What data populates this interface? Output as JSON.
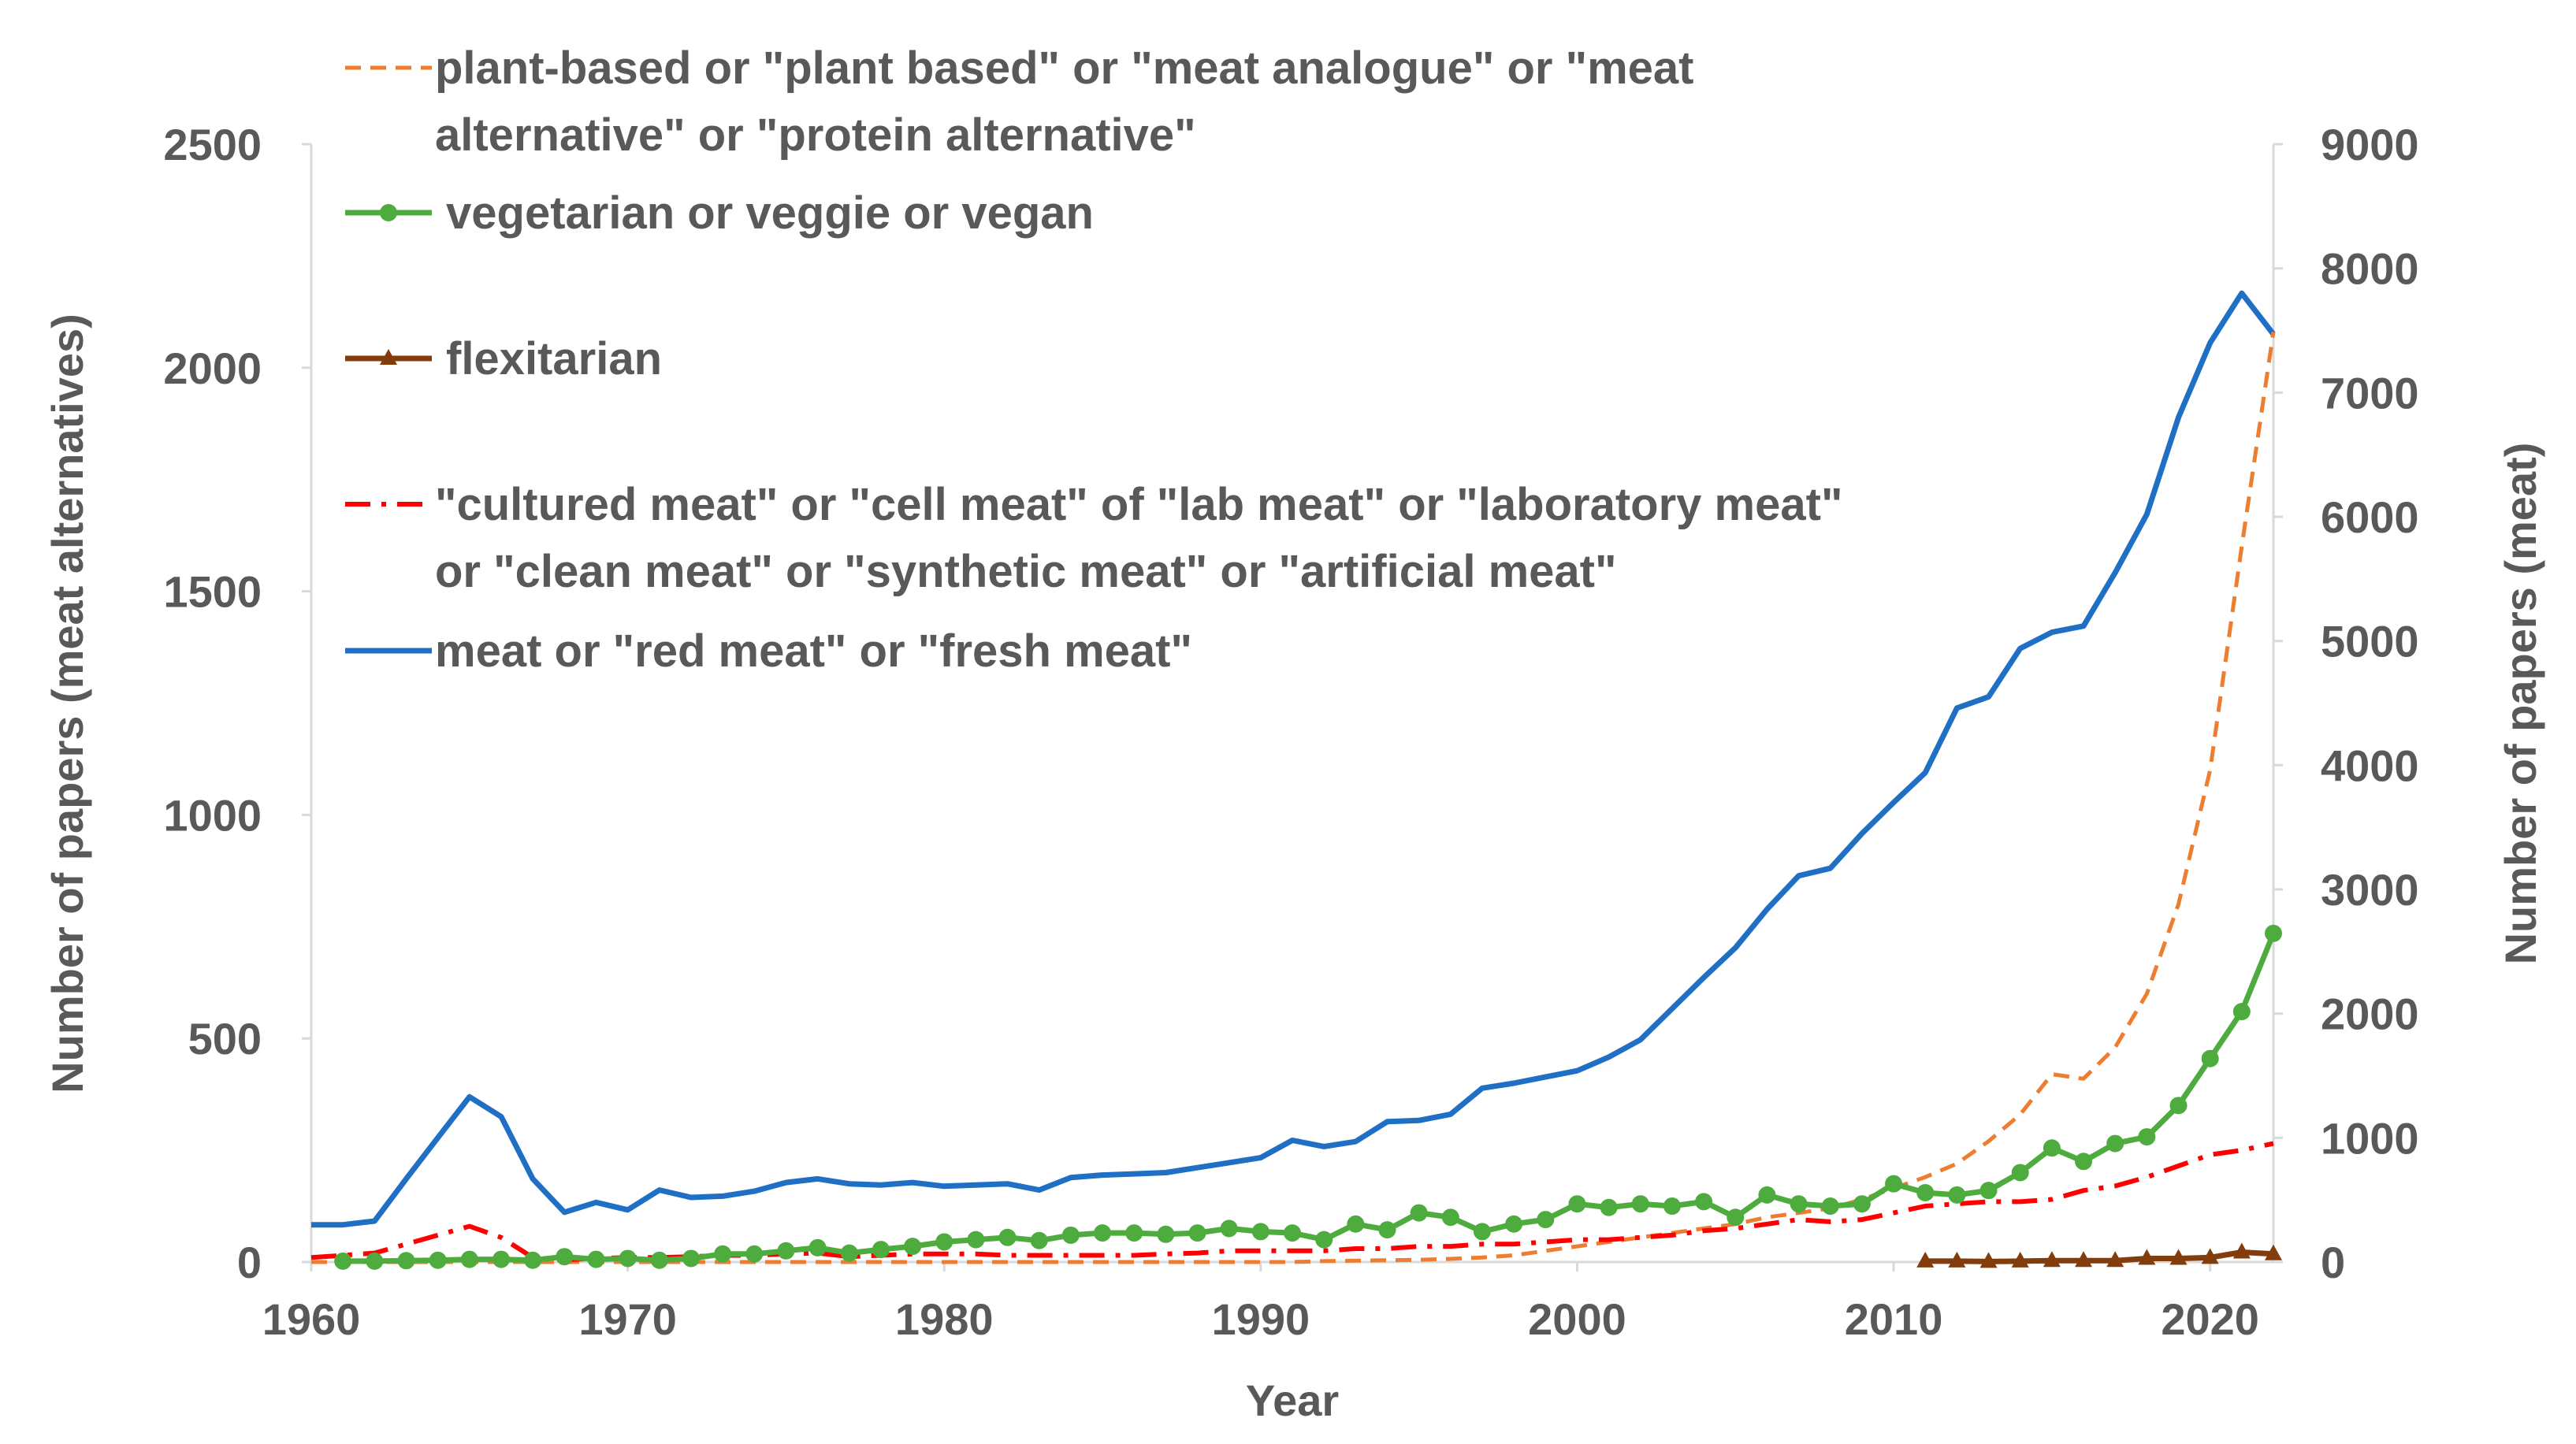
{
  "chart_data": {
    "type": "line",
    "title": "",
    "xlabel": "Year",
    "ylabel_left": "Number of papers (meat alternatives)",
    "ylabel_right": "Number of papers (meat)",
    "xlim": [
      1960,
      2022
    ],
    "ylim_left": [
      0,
      2500
    ],
    "ylim_right": [
      0,
      9000
    ],
    "x_ticks": [
      "1960",
      "1970",
      "1980",
      "1990",
      "2000",
      "2010",
      "2020"
    ],
    "y_ticks_left": [
      "0",
      "500",
      "1000",
      "1500",
      "2000",
      "2500"
    ],
    "y_ticks_right": [
      "0",
      "1000",
      "2000",
      "3000",
      "4000",
      "5000",
      "6000",
      "7000",
      "8000",
      "9000"
    ],
    "legend_position": "top-left",
    "series": [
      {
        "name": "plant-based or \"plant based\" or \"meat analogue\" or \"meat alternative\" or \"protein alternative\"",
        "legend_lines": [
          "plant-based or \"plant based\" or \"meat analogue\" or \"meat",
          "alternative\" or \"protein alternative\""
        ],
        "axis": "left",
        "color": "#ED7D31",
        "style": "dashed",
        "marker": "none",
        "x": [
          1960,
          1961,
          1962,
          1963,
          1964,
          1965,
          1966,
          1967,
          1968,
          1969,
          1970,
          1971,
          1972,
          1973,
          1974,
          1975,
          1976,
          1977,
          1978,
          1979,
          1980,
          1981,
          1982,
          1983,
          1984,
          1985,
          1986,
          1987,
          1988,
          1989,
          1990,
          1991,
          1992,
          1993,
          1994,
          1995,
          1996,
          1997,
          1998,
          1999,
          2000,
          2001,
          2002,
          2003,
          2004,
          2005,
          2006,
          2007,
          2008,
          2009,
          2010,
          2011,
          2012,
          2013,
          2014,
          2015,
          2016,
          2017,
          2018,
          2019,
          2020,
          2021,
          2022
        ],
        "values": [
          0,
          0,
          0,
          0,
          0,
          0,
          0,
          0,
          0,
          0,
          0,
          0,
          0,
          0,
          0,
          0,
          0,
          0,
          0,
          0,
          0,
          0,
          0,
          0,
          0,
          0,
          0,
          0,
          0,
          0,
          0,
          0,
          2,
          3,
          4,
          5,
          7,
          10,
          15,
          25,
          35,
          45,
          55,
          65,
          75,
          85,
          100,
          110,
          120,
          140,
          165,
          190,
          220,
          270,
          330,
          420,
          410,
          480,
          600,
          800,
          1100,
          1600,
          2080
        ]
      },
      {
        "name": "vegetarian or veggie or vegan",
        "legend_lines": [
          "vegetarian or veggie or vegan"
        ],
        "axis": "left",
        "color": "#4EAC3E",
        "style": "solid",
        "marker": "circle",
        "x": [
          1961,
          1962,
          1963,
          1964,
          1965,
          1966,
          1967,
          1968,
          1969,
          1970,
          1971,
          1972,
          1973,
          1974,
          1975,
          1976,
          1977,
          1978,
          1979,
          1980,
          1981,
          1982,
          1983,
          1984,
          1985,
          1986,
          1987,
          1988,
          1989,
          1990,
          1991,
          1992,
          1993,
          1994,
          1995,
          1996,
          1997,
          1998,
          1999,
          2000,
          2001,
          2002,
          2003,
          2004,
          2005,
          2006,
          2007,
          2008,
          2009,
          2010,
          2011,
          2012,
          2013,
          2014,
          2015,
          2016,
          2017,
          2018,
          2019,
          2020,
          2021,
          2022
        ],
        "values": [
          2,
          2,
          3,
          4,
          6,
          6,
          4,
          12,
          6,
          8,
          4,
          8,
          18,
          18,
          25,
          32,
          20,
          28,
          35,
          45,
          50,
          55,
          48,
          60,
          65,
          65,
          62,
          65,
          75,
          68,
          65,
          50,
          85,
          72,
          110,
          100,
          68,
          85,
          95,
          130,
          122,
          130,
          125,
          135,
          100,
          150,
          130,
          125,
          130,
          175,
          155,
          150,
          160,
          200,
          255,
          225,
          265,
          280,
          350,
          455,
          560,
          735
        ]
      },
      {
        "name": "flexitarian",
        "legend_lines": [
          "flexitarian"
        ],
        "axis": "left",
        "color": "#833C0B",
        "style": "solid",
        "marker": "triangle",
        "x": [
          2011,
          2012,
          2013,
          2014,
          2015,
          2016,
          2017,
          2018,
          2019,
          2020,
          2021,
          2022
        ],
        "values": [
          2,
          2,
          1,
          2,
          3,
          3,
          3,
          8,
          8,
          10,
          22,
          18
        ]
      },
      {
        "name": "\"cultured meat\" or \"cell meat\" of \"lab meat\" or \"laboratory meat\" or \"clean meat\" or \"synthetic meat\" or \"artificial meat\"",
        "legend_lines": [
          "\"cultured meat\" or \"cell meat\" of \"lab meat\" or \"laboratory meat\"",
          "or \"clean meat\" or \"synthetic meat\" or \"artificial meat\""
        ],
        "axis": "left",
        "color": "#FF0000",
        "style": "dashdot",
        "marker": "none",
        "x": [
          1960,
          1961,
          1962,
          1963,
          1964,
          1965,
          1966,
          1967,
          1968,
          1969,
          1970,
          1971,
          1972,
          1973,
          1974,
          1975,
          1976,
          1977,
          1978,
          1979,
          1980,
          1981,
          1982,
          1983,
          1984,
          1985,
          1986,
          1987,
          1988,
          1989,
          1990,
          1991,
          1992,
          1993,
          1994,
          1995,
          1996,
          1997,
          1998,
          1999,
          2000,
          2001,
          2002,
          2003,
          2004,
          2005,
          2006,
          2007,
          2008,
          2009,
          2010,
          2011,
          2012,
          2013,
          2014,
          2015,
          2016,
          2017,
          2018,
          2019,
          2020,
          2021,
          2022
        ],
        "values": [
          10,
          15,
          20,
          40,
          60,
          80,
          55,
          10,
          5,
          8,
          10,
          10,
          12,
          15,
          15,
          18,
          20,
          12,
          15,
          18,
          18,
          18,
          15,
          15,
          15,
          15,
          15,
          18,
          20,
          25,
          25,
          25,
          25,
          30,
          30,
          35,
          35,
          40,
          40,
          45,
          50,
          50,
          55,
          60,
          70,
          75,
          85,
          95,
          90,
          95,
          110,
          125,
          130,
          135,
          135,
          140,
          160,
          170,
          190,
          215,
          240,
          250,
          265
        ]
      },
      {
        "name": "meat or \"red meat\" or \"fresh meat\"",
        "legend_lines": [
          "meat or \"red meat\" or \"fresh meat\""
        ],
        "axis": "right",
        "color": "#1F6FC5",
        "style": "solid",
        "marker": "none",
        "x": [
          1960,
          1961,
          1962,
          1963,
          1964,
          1965,
          1966,
          1967,
          1968,
          1969,
          1970,
          1971,
          1972,
          1973,
          1974,
          1975,
          1976,
          1977,
          1978,
          1979,
          1980,
          1981,
          1982,
          1983,
          1984,
          1985,
          1986,
          1987,
          1988,
          1989,
          1990,
          1991,
          1992,
          1993,
          1994,
          1995,
          1996,
          1997,
          1998,
          1999,
          2000,
          2001,
          2002,
          2003,
          2004,
          2005,
          2006,
          2007,
          2008,
          2009,
          2010,
          2011,
          2012,
          2013,
          2014,
          2015,
          2016,
          2017,
          2018,
          2019,
          2020,
          2021,
          2022
        ],
        "values": [
          300,
          300,
          330,
          670,
          1000,
          1330,
          1170,
          670,
          400,
          480,
          420,
          580,
          520,
          530,
          570,
          640,
          670,
          630,
          620,
          640,
          610,
          620,
          630,
          580,
          680,
          700,
          710,
          720,
          760,
          800,
          840,
          980,
          930,
          970,
          1130,
          1140,
          1190,
          1400,
          1440,
          1490,
          1540,
          1650,
          1790,
          2040,
          2290,
          2530,
          2840,
          3110,
          3170,
          3450,
          3700,
          3940,
          4460,
          4550,
          4940,
          5070,
          5120,
          5550,
          6020,
          6800,
          7400,
          7800,
          7470
        ]
      }
    ]
  }
}
